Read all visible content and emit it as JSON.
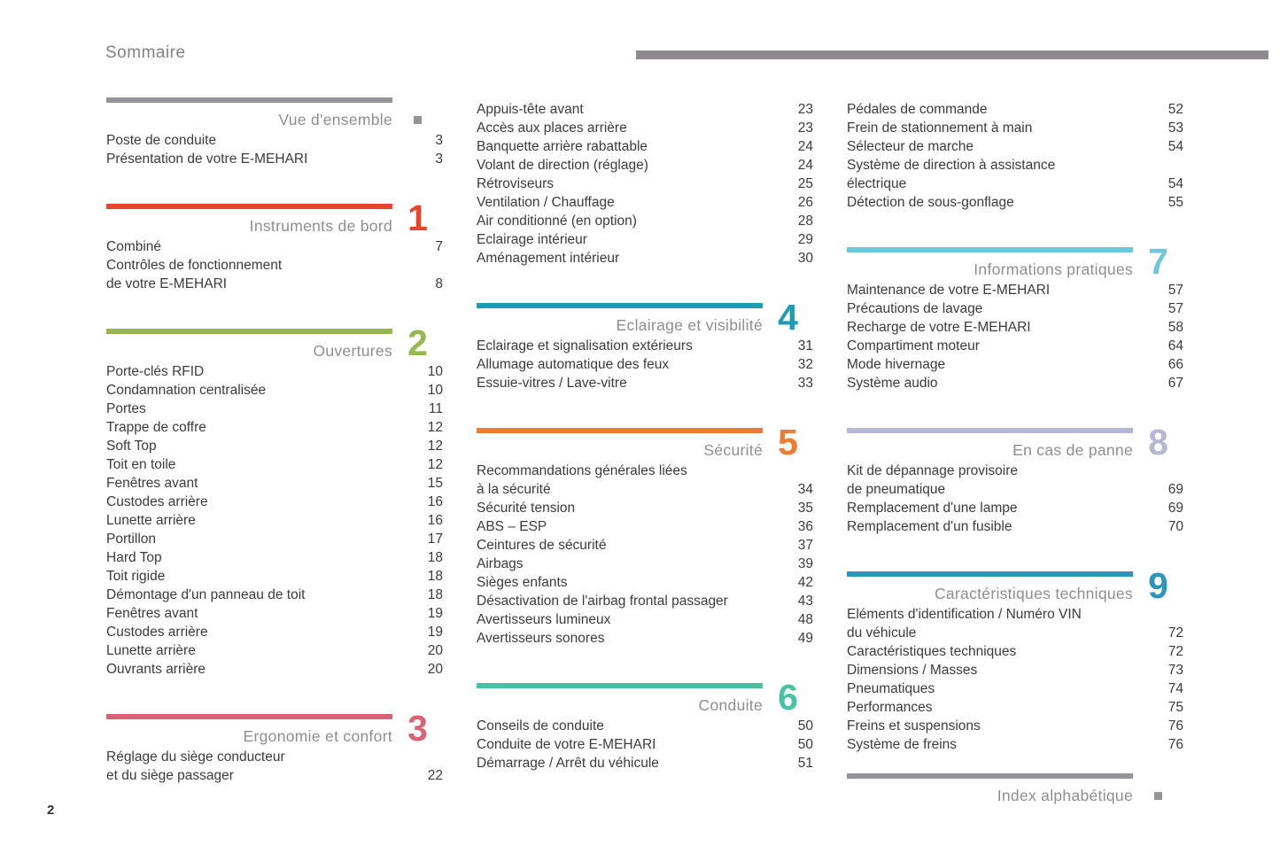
{
  "page": {
    "title": "Sommaire",
    "number": "2"
  },
  "header": {
    "rule_color": "#8e8a90"
  },
  "columns": [
    {
      "sections": [
        {
          "title": "Vue d'ensemble",
          "bar_color": "#97939a",
          "marker": "square",
          "entries": [
            {
              "lines": [
                "Poste de conduite"
              ],
              "page": "3"
            },
            {
              "lines": [
                "Présentation de votre E-MEHARI"
              ],
              "page": "3"
            }
          ]
        },
        {
          "title": "Instruments de bord",
          "number": "1",
          "bar_color": "#e8432b",
          "entries": [
            {
              "lines": [
                "Combiné"
              ],
              "page": "7"
            },
            {
              "lines": [
                "Contrôles de fonctionnement",
                "de votre E-MEHARI"
              ],
              "page": "8"
            }
          ]
        },
        {
          "title": "Ouvertures",
          "number": "2",
          "bar_color": "#96b84d",
          "entries": [
            {
              "lines": [
                "Porte-clés RFID"
              ],
              "page": "10"
            },
            {
              "lines": [
                "Condamnation centralisée"
              ],
              "page": "10"
            },
            {
              "lines": [
                "Portes"
              ],
              "page": "11"
            },
            {
              "lines": [
                "Trappe de coffre"
              ],
              "page": "12"
            },
            {
              "lines": [
                "Soft Top"
              ],
              "page": "12"
            },
            {
              "lines": [
                "Toit en toile"
              ],
              "page": "12"
            },
            {
              "lines": [
                "Fenêtres avant"
              ],
              "page": "15"
            },
            {
              "lines": [
                "Custodes arrière"
              ],
              "page": "16"
            },
            {
              "lines": [
                "Lunette arrière"
              ],
              "page": "16"
            },
            {
              "lines": [
                "Portillon"
              ],
              "page": "17"
            },
            {
              "lines": [
                "Hard Top"
              ],
              "page": "18"
            },
            {
              "lines": [
                "Toit rigide"
              ],
              "page": "18"
            },
            {
              "lines": [
                "Démontage d'un panneau de toit"
              ],
              "page": "18"
            },
            {
              "lines": [
                "Fenêtres avant"
              ],
              "page": "19"
            },
            {
              "lines": [
                "Custodes arrière"
              ],
              "page": "19"
            },
            {
              "lines": [
                "Lunette arrière"
              ],
              "page": "20"
            },
            {
              "lines": [
                "Ouvrants arrière"
              ],
              "page": "20"
            }
          ]
        },
        {
          "title": "Ergonomie et confort",
          "number": "3",
          "bar_color": "#da6276",
          "entries": [
            {
              "lines": [
                "Réglage du siège conducteur",
                "et du siège passager"
              ],
              "page": "22"
            }
          ]
        }
      ]
    },
    {
      "sections": [
        {
          "entries": [
            {
              "lines": [
                "Appuis-tête avant"
              ],
              "page": "23"
            },
            {
              "lines": [
                "Accès aux places arrière"
              ],
              "page": "23"
            },
            {
              "lines": [
                "Banquette arrière rabattable"
              ],
              "page": "24"
            },
            {
              "lines": [
                "Volant de direction (réglage)"
              ],
              "page": "24"
            },
            {
              "lines": [
                "Rétroviseurs"
              ],
              "page": "25"
            },
            {
              "lines": [
                "Ventilation / Chauffage"
              ],
              "page": "26"
            },
            {
              "lines": [
                "Air conditionné (en option)"
              ],
              "page": "28"
            },
            {
              "lines": [
                "Eclairage intérieur"
              ],
              "page": "29"
            },
            {
              "lines": [
                "Aménagement intérieur"
              ],
              "page": "30"
            }
          ]
        },
        {
          "title": "Eclairage et visibilité",
          "number": "4",
          "bar_color": "#1e9cb4",
          "entries": [
            {
              "lines": [
                "Eclairage et signalisation extérieurs"
              ],
              "page": "31"
            },
            {
              "lines": [
                "Allumage automatique des feux"
              ],
              "page": "32"
            },
            {
              "lines": [
                "Essuie-vitres / Lave-vitre"
              ],
              "page": "33"
            }
          ]
        },
        {
          "title": "Sécurité",
          "number": "5",
          "bar_color": "#ef7b33",
          "entries": [
            {
              "lines": [
                "Recommandations générales liées",
                "à la sécurité"
              ],
              "page": "34"
            },
            {
              "lines": [
                "Sécurité tension"
              ],
              "page": "35"
            },
            {
              "lines": [
                "ABS – ESP"
              ],
              "page": "36"
            },
            {
              "lines": [
                "Ceintures de sécurité"
              ],
              "page": "37"
            },
            {
              "lines": [
                "Airbags"
              ],
              "page": "39"
            },
            {
              "lines": [
                "Sièges enfants"
              ],
              "page": "42"
            },
            {
              "lines": [
                "Désactivation de l'airbag frontal passager"
              ],
              "page": "43"
            },
            {
              "lines": [
                "Avertisseurs lumineux"
              ],
              "page": "48"
            },
            {
              "lines": [
                "Avertisseurs sonores"
              ],
              "page": "49"
            }
          ]
        },
        {
          "title": "Conduite",
          "number": "6",
          "bar_color": "#46c3a2",
          "entries": [
            {
              "lines": [
                "Conseils de conduite"
              ],
              "page": "50"
            },
            {
              "lines": [
                "Conduite de votre E-MEHARI"
              ],
              "page": "50"
            },
            {
              "lines": [
                "Démarrage / Arrêt du véhicule"
              ],
              "page": "51"
            }
          ]
        }
      ]
    },
    {
      "sections": [
        {
          "entries": [
            {
              "lines": [
                "Pédales de commande"
              ],
              "page": "52"
            },
            {
              "lines": [
                "Frein de stationnement à main"
              ],
              "page": "53"
            },
            {
              "lines": [
                "Sélecteur de marche"
              ],
              "page": "54"
            },
            {
              "lines": [
                "Système de direction à assistance",
                "électrique"
              ],
              "page": "54"
            },
            {
              "lines": [
                "Détection de sous-gonflage"
              ],
              "page": "55"
            }
          ]
        },
        {
          "title": "Informations pratiques",
          "number": "7",
          "bar_color": "#6fc5db",
          "entries": [
            {
              "lines": [
                "Maintenance de votre E-MEHARI"
              ],
              "page": "57"
            },
            {
              "lines": [
                "Précautions de lavage"
              ],
              "page": "57"
            },
            {
              "lines": [
                "Recharge de votre E-MEHARI"
              ],
              "page": "58"
            },
            {
              "lines": [
                "Compartiment moteur"
              ],
              "page": "64"
            },
            {
              "lines": [
                "Mode hivernage"
              ],
              "page": "66"
            },
            {
              "lines": [
                "Système audio"
              ],
              "page": "67"
            }
          ]
        },
        {
          "title": "En cas de panne",
          "number": "8",
          "bar_color": "#b4b8d5",
          "entries": [
            {
              "lines": [
                "Kit de dépannage provisoire",
                "de pneumatique"
              ],
              "page": "69"
            },
            {
              "lines": [
                "Remplacement d'une lampe"
              ],
              "page": "69"
            },
            {
              "lines": [
                "Remplacement d'un fusible"
              ],
              "page": "70"
            }
          ]
        },
        {
          "title": "Caractéristiques techniques",
          "number": "9",
          "bar_color": "#2c96bd",
          "entries": [
            {
              "lines": [
                "Eléments d'identification / Numéro VIN",
                "du véhicule"
              ],
              "page": "72"
            },
            {
              "lines": [
                "Caractéristiques techniques"
              ],
              "page": "72"
            },
            {
              "lines": [
                "Dimensions / Masses"
              ],
              "page": "73"
            },
            {
              "lines": [
                "Pneumatiques"
              ],
              "page": "74"
            },
            {
              "lines": [
                "Performances"
              ],
              "page": "75"
            },
            {
              "lines": [
                "Freins et suspensions"
              ],
              "page": "76"
            },
            {
              "lines": [
                "Système de freins"
              ],
              "page": "76"
            }
          ]
        },
        {
          "title": "Index alphabétique",
          "bar_color": "#97939a",
          "marker": "square",
          "entries": []
        }
      ]
    }
  ]
}
